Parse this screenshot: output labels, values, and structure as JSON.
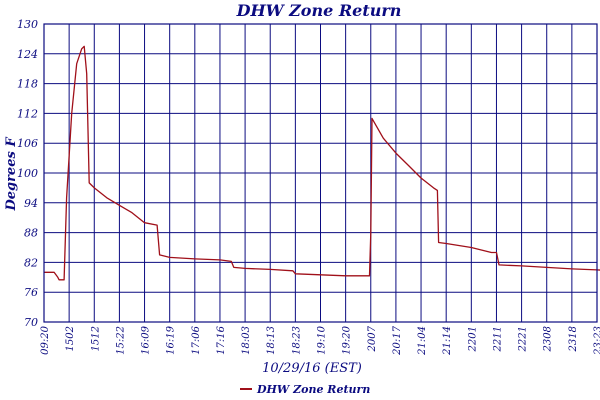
{
  "chart_data": {
    "type": "line",
    "title": "DHW Zone Return",
    "xlabel": "10/29/16 (EST)",
    "ylabel": "Degrees F",
    "ylim": [
      70,
      130
    ],
    "yticks": [
      "130",
      "124",
      "118",
      "112",
      "106",
      "100",
      "94",
      "88",
      "82",
      "76",
      "70"
    ],
    "xticks": [
      "09:20",
      "1502",
      "1512",
      "15:22",
      "16:09",
      "16:19",
      "17:06",
      "17:16",
      "18:03",
      "18:13",
      "18:23",
      "19:10",
      "19:20",
      "2007",
      "20:17",
      "21:04",
      "21:14",
      "2201",
      "2211",
      "2221",
      "2308",
      "2318",
      "23:23"
    ],
    "grid": true,
    "legend_position": "bottom-left",
    "colors": {
      "grid": "#0b0b80",
      "axis": "#0b0b80",
      "text": "#0b0b80",
      "series": "#a0101a"
    },
    "series": [
      {
        "name": "DHW Zone Return",
        "points": [
          [
            0.0,
            80.0
          ],
          [
            0.4,
            80.0
          ],
          [
            0.55,
            79.0
          ],
          [
            0.6,
            78.5
          ],
          [
            0.8,
            78.5
          ],
          [
            0.9,
            95.0
          ],
          [
            1.1,
            112.0
          ],
          [
            1.3,
            122.0
          ],
          [
            1.5,
            125.0
          ],
          [
            1.6,
            125.5
          ],
          [
            1.7,
            120.0
          ],
          [
            1.8,
            98.0
          ],
          [
            2.0,
            97.0
          ],
          [
            2.5,
            95.0
          ],
          [
            3.0,
            93.5
          ],
          [
            3.5,
            92.0
          ],
          [
            4.0,
            90.0
          ],
          [
            4.5,
            89.5
          ],
          [
            4.6,
            83.5
          ],
          [
            5.0,
            83.0
          ],
          [
            6.0,
            82.7
          ],
          [
            7.0,
            82.5
          ],
          [
            7.45,
            82.2
          ],
          [
            7.55,
            81.0
          ],
          [
            8.0,
            80.8
          ],
          [
            9.0,
            80.6
          ],
          [
            9.9,
            80.3
          ],
          [
            10.0,
            79.7
          ],
          [
            11.0,
            79.5
          ],
          [
            12.0,
            79.3
          ],
          [
            12.95,
            79.3
          ],
          [
            13.0,
            88.0
          ],
          [
            13.05,
            111.0
          ],
          [
            13.5,
            107.0
          ],
          [
            14.0,
            104.0
          ],
          [
            14.5,
            101.5
          ],
          [
            15.0,
            99.0
          ],
          [
            15.5,
            97.0
          ],
          [
            15.65,
            96.5
          ],
          [
            15.7,
            86.0
          ],
          [
            16.0,
            85.8
          ],
          [
            17.0,
            85.0
          ],
          [
            17.8,
            84.0
          ],
          [
            18.0,
            84.0
          ],
          [
            18.1,
            81.5
          ],
          [
            19.0,
            81.3
          ],
          [
            20.0,
            81.0
          ],
          [
            21.0,
            80.7
          ],
          [
            22.0,
            80.5
          ],
          [
            23.0,
            80.2
          ],
          [
            24.0,
            80.0
          ],
          [
            25.0,
            80.0
          ],
          [
            25.3,
            80.0
          ]
        ]
      }
    ]
  }
}
